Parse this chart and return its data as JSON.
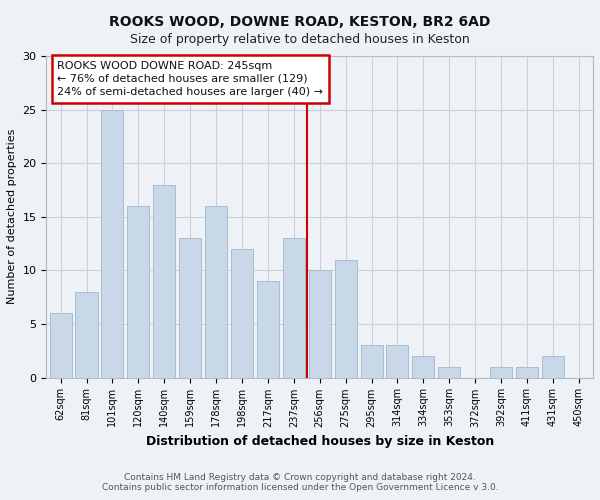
{
  "title": "ROOKS WOOD, DOWNE ROAD, KESTON, BR2 6AD",
  "subtitle": "Size of property relative to detached houses in Keston",
  "xlabel": "Distribution of detached houses by size in Keston",
  "ylabel": "Number of detached properties",
  "footer_line1": "Contains HM Land Registry data © Crown copyright and database right 2024.",
  "footer_line2": "Contains public sector information licensed under the Open Government Licence v 3.0.",
  "bar_labels": [
    "62sqm",
    "81sqm",
    "101sqm",
    "120sqm",
    "140sqm",
    "159sqm",
    "178sqm",
    "198sqm",
    "217sqm",
    "237sqm",
    "256sqm",
    "275sqm",
    "295sqm",
    "314sqm",
    "334sqm",
    "353sqm",
    "372sqm",
    "392sqm",
    "411sqm",
    "431sqm",
    "450sqm"
  ],
  "bar_values": [
    6,
    8,
    25,
    16,
    18,
    13,
    16,
    12,
    9,
    13,
    10,
    11,
    3,
    3,
    2,
    1,
    0,
    1,
    1,
    2,
    0
  ],
  "bar_color": "#c8d8e8",
  "bar_edge_color": "#a8bece",
  "grid_color": "#c8d0da",
  "background_color": "#eef2f7",
  "vline_x_index": 9.5,
  "vline_color": "#cc0000",
  "annotation_line1": "ROOKS WOOD DOWNE ROAD: 245sqm",
  "annotation_line2": "← 76% of detached houses are smaller (129)",
  "annotation_line3": "24% of semi-detached houses are larger (40) →",
  "annotation_box_color": "#cc0000",
  "annotation_fill": "#ffffff",
  "ylim": [
    0,
    30
  ],
  "yticks": [
    0,
    5,
    10,
    15,
    20,
    25,
    30
  ],
  "title_fontsize": 10,
  "subtitle_fontsize": 9,
  "xlabel_fontsize": 9,
  "ylabel_fontsize": 8,
  "tick_fontsize": 8,
  "xtick_fontsize": 7,
  "footer_fontsize": 6.5,
  "annot_fontsize": 8
}
